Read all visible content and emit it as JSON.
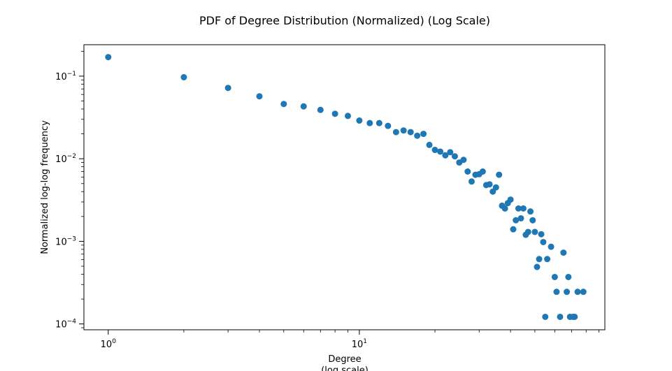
{
  "chart_data": {
    "type": "scatter",
    "title": "PDF of Degree Distribution (Normalized) (Log Scale)",
    "xlabel_line1": "Degree",
    "xlabel_line2": "(log scale)",
    "ylabel": "Normalized log-log frequency",
    "xscale": "log",
    "yscale": "log",
    "xlim": [
      0.8,
      95
    ],
    "ylim": [
      8.5e-05,
      0.24
    ],
    "grid": false,
    "legend": "none",
    "x_ticks": [
      {
        "value": 1,
        "base": "10",
        "exp": "0"
      },
      {
        "value": 10,
        "base": "10",
        "exp": "1"
      }
    ],
    "y_ticks": [
      {
        "value": 0.0001,
        "base": "10",
        "exp": "−4"
      },
      {
        "value": 0.001,
        "base": "10",
        "exp": "−3"
      },
      {
        "value": 0.01,
        "base": "10",
        "exp": "−2"
      },
      {
        "value": 0.1,
        "base": "10",
        "exp": "−1"
      }
    ],
    "marker_color": "#1f77b4",
    "points": [
      [
        1,
        0.17
      ],
      [
        2,
        0.097
      ],
      [
        3,
        0.072
      ],
      [
        4,
        0.057
      ],
      [
        5,
        0.046
      ],
      [
        6,
        0.043
      ],
      [
        7,
        0.039
      ],
      [
        8,
        0.035
      ],
      [
        9,
        0.033
      ],
      [
        10,
        0.029
      ],
      [
        11,
        0.027
      ],
      [
        12,
        0.027
      ],
      [
        13,
        0.025
      ],
      [
        14,
        0.021
      ],
      [
        15,
        0.022
      ],
      [
        16,
        0.021
      ],
      [
        17,
        0.019
      ],
      [
        18,
        0.02
      ],
      [
        19,
        0.0147
      ],
      [
        20,
        0.0128
      ],
      [
        21,
        0.0122
      ],
      [
        22,
        0.011
      ],
      [
        23,
        0.012
      ],
      [
        24,
        0.0107
      ],
      [
        25,
        0.009
      ],
      [
        26,
        0.0097
      ],
      [
        27,
        0.007
      ],
      [
        28,
        0.0053
      ],
      [
        29,
        0.0064
      ],
      [
        30,
        0.0065
      ],
      [
        31,
        0.007
      ],
      [
        32,
        0.0048
      ],
      [
        33,
        0.0049
      ],
      [
        34,
        0.004
      ],
      [
        35,
        0.0045
      ],
      [
        36,
        0.0064
      ],
      [
        37,
        0.0027
      ],
      [
        38,
        0.0025
      ],
      [
        39,
        0.0029
      ],
      [
        40,
        0.0032
      ],
      [
        41,
        0.0014
      ],
      [
        42,
        0.0018
      ],
      [
        43,
        0.0025
      ],
      [
        44,
        0.0019
      ],
      [
        45,
        0.0025
      ],
      [
        46,
        0.0012
      ],
      [
        47,
        0.0013
      ],
      [
        48,
        0.0023
      ],
      [
        49,
        0.0018
      ],
      [
        50,
        0.0013
      ],
      [
        51,
        0.00049
      ],
      [
        52,
        0.00061
      ],
      [
        53,
        0.00122
      ],
      [
        54,
        0.00098
      ],
      [
        55,
        0.000122
      ],
      [
        56,
        0.00061
      ],
      [
        58,
        0.00086
      ],
      [
        60,
        0.00037
      ],
      [
        61,
        0.000245
      ],
      [
        63,
        0.000122
      ],
      [
        65,
        0.00073
      ],
      [
        67,
        0.000245
      ],
      [
        68,
        0.00037
      ],
      [
        69,
        0.000122
      ],
      [
        71,
        0.000122
      ],
      [
        72,
        0.000122
      ],
      [
        74,
        0.000245
      ],
      [
        78,
        0.000245
      ]
    ]
  }
}
